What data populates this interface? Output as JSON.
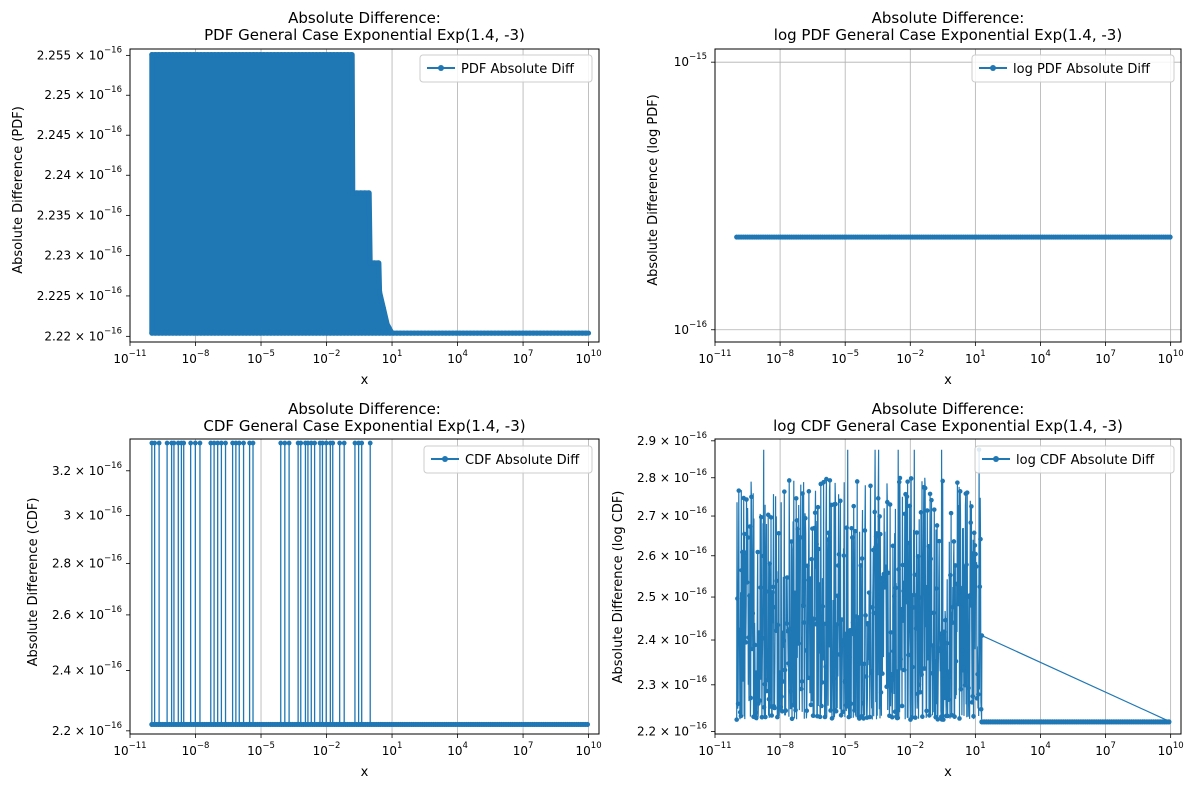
{
  "figure": {
    "series_color": "#1f77b4"
  },
  "charts": [
    {
      "title_line1": "Absolute Difference:",
      "title_line2": "PDF General Case Exponential Exp(1.4, -3)",
      "xlabel": "x",
      "ylabel": "Absolute Difference (PDF)",
      "legend": "PDF Absolute Diff",
      "xticks": [
        "10",
        "10",
        "10",
        "10",
        "10",
        "10",
        "10",
        "10"
      ],
      "xtick_exp": [
        "−11",
        "−8",
        "−5",
        "−2",
        "1",
        "4",
        "7",
        "10"
      ],
      "yticks": [
        "2.22 × 10",
        "2.225 × 10",
        "2.23 × 10",
        "2.235 × 10",
        "2.24 × 10",
        "2.245 × 10",
        "2.25 × 10",
        "2.255 × 10"
      ],
      "ytick_exp": [
        "−16",
        "−16",
        "−16",
        "−16",
        "−16",
        "−16",
        "−16",
        "−16"
      ]
    },
    {
      "title_line1": "Absolute Difference:",
      "title_line2": "log PDF General Case Exponential Exp(1.4, -3)",
      "xlabel": "x",
      "ylabel": "Absolute Difference (log PDF)",
      "legend": "log PDF Absolute Diff",
      "xticks": [
        "10",
        "10",
        "10",
        "10",
        "10",
        "10",
        "10",
        "10"
      ],
      "xtick_exp": [
        "−11",
        "−8",
        "−5",
        "−2",
        "1",
        "4",
        "7",
        "10"
      ],
      "yticks": [
        "10",
        "10"
      ],
      "ytick_exp": [
        "−16",
        "−15"
      ]
    },
    {
      "title_line1": "Absolute Difference:",
      "title_line2": "CDF General Case Exponential Exp(1.4, -3)",
      "xlabel": "x",
      "ylabel": "Absolute Difference (CDF)",
      "legend": "CDF Absolute Diff",
      "xticks": [
        "10",
        "10",
        "10",
        "10",
        "10",
        "10",
        "10",
        "10"
      ],
      "xtick_exp": [
        "−11",
        "−8",
        "−5",
        "−2",
        "1",
        "4",
        "7",
        "10"
      ],
      "yticks": [
        "2.2 × 10",
        "2.4 × 10",
        "2.6 × 10",
        "2.8 × 10",
        "3 × 10",
        "3.2 × 10"
      ],
      "ytick_exp": [
        "−16",
        "−16",
        "−16",
        "−16",
        "−16",
        "−16"
      ]
    },
    {
      "title_line1": "Absolute Difference:",
      "title_line2": "log CDF General Case Exponential Exp(1.4, -3)",
      "xlabel": "x",
      "ylabel": "Absolute Difference (log CDF)",
      "legend": "log CDF Absolute Diff",
      "xticks": [
        "10",
        "10",
        "10",
        "10",
        "10",
        "10",
        "10",
        "10"
      ],
      "xtick_exp": [
        "−11",
        "−8",
        "−5",
        "−2",
        "1",
        "4",
        "7",
        "10"
      ],
      "yticks": [
        "2.2 × 10",
        "2.3 × 10",
        "2.4 × 10",
        "2.5 × 10",
        "2.6 × 10",
        "2.7 × 10",
        "2.8 × 10",
        "2.9 × 10"
      ],
      "ytick_exp": [
        "−16",
        "−16",
        "−16",
        "−16",
        "−16",
        "−16",
        "−16",
        "−16"
      ]
    }
  ],
  "chart_data": [
    {
      "type": "line",
      "title": "Absolute Difference:\nPDF General Case Exponential Exp(1.4, -3)",
      "xlabel": "x",
      "ylabel": "Absolute Difference (PDF)",
      "xscale": "log",
      "yscale": "log",
      "xlim": [
        1e-11,
        30000000000.0
      ],
      "ylim": [
        2.2193e-16,
        2.2558e-16
      ],
      "xticks": [
        1e-11,
        1e-08,
        1e-05,
        0.01,
        10.0,
        10000.0,
        10000000.0,
        10000000000.0
      ],
      "yticks": [
        2.22e-16,
        2.225e-16,
        2.23e-16,
        2.235e-16,
        2.24e-16,
        2.245e-16,
        2.25e-16,
        2.255e-16
      ],
      "grid": true,
      "legend_position": "upper right",
      "series": [
        {
          "name": "PDF Absolute Diff",
          "marker": "o",
          "envelope": [
            {
              "x": 1e-10,
              "ymin": 2.2204e-16,
              "ymax": 2.2551e-16
            },
            {
              "x": 0.15,
              "ymin": 2.2204e-16,
              "ymax": 2.2551e-16
            },
            {
              "x": 0.16,
              "ymin": 2.2204e-16,
              "ymax": 2.2378e-16
            },
            {
              "x": 0.9,
              "ymin": 2.2204e-16,
              "ymax": 2.2378e-16
            },
            {
              "x": 1.0,
              "ymin": 2.2204e-16,
              "ymax": 2.2291e-16
            },
            {
              "x": 2.5,
              "ymin": 2.2204e-16,
              "ymax": 2.2291e-16
            },
            {
              "x": 2.7,
              "ymin": 2.2204e-16,
              "ymax": 2.2255e-16
            },
            {
              "x": 4.0,
              "ymin": 2.2204e-16,
              "ymax": 2.2235e-16
            },
            {
              "x": 6.0,
              "ymin": 2.2204e-16,
              "ymax": 2.2215e-16
            },
            {
              "x": 10,
              "ymin": 2.2204e-16,
              "ymax": 2.2204e-16
            },
            {
              "x": 10000000000.0,
              "ymin": 2.2204e-16,
              "ymax": 2.2204e-16
            }
          ]
        }
      ]
    },
    {
      "type": "line",
      "title": "Absolute Difference:\nlog PDF General Case Exponential Exp(1.4, -3)",
      "xlabel": "x",
      "ylabel": "Absolute Difference (log PDF)",
      "xscale": "log",
      "yscale": "log",
      "xlim": [
        1e-11,
        30000000000.0
      ],
      "ylim": [
        9e-17,
        1.12e-15
      ],
      "xticks": [
        1e-11,
        1e-08,
        1e-05,
        0.01,
        10.0,
        10000.0,
        10000000.0,
        10000000000.0
      ],
      "yticks": [
        1e-16,
        1e-15
      ],
      "grid": true,
      "legend_position": "upper right",
      "series": [
        {
          "name": "log PDF Absolute Diff",
          "marker": "o",
          "x_range": [
            1e-10,
            10000000000.0
          ],
          "constant_y": 2.2204e-16
        }
      ]
    },
    {
      "type": "line",
      "title": "Absolute Difference:\nCDF General Case Exponential Exp(1.4, -3)",
      "xlabel": "x",
      "ylabel": "Absolute Difference (CDF)",
      "xscale": "log",
      "yscale": "log",
      "xlim": [
        1e-11,
        30000000000.0
      ],
      "ylim": [
        2.19e-16,
        3.35e-16
      ],
      "xticks": [
        1e-11,
        1e-08,
        1e-05,
        0.01,
        10.0,
        10000.0,
        10000000.0,
        10000000000.0
      ],
      "yticks": [
        2.2e-16,
        2.4e-16,
        2.6e-16,
        2.8e-16,
        3e-16,
        3.2e-16
      ],
      "grid": true,
      "legend_position": "upper right",
      "series": [
        {
          "name": "CDF Absolute Diff",
          "marker": "o",
          "baseline_y": 2.2204e-16,
          "baseline_x_range": [
            1e-10,
            10000000000.0
          ],
          "spike_y": 3.3307e-16,
          "spikes": [
            {
              "x_from": 1e-10,
              "x_to": 3e-10
            },
            {
              "x_from": 5e-10,
              "x_to": 3e-09
            },
            {
              "x_from": 6e-09,
              "x_to": 2e-08
            },
            {
              "x_from": 5e-08,
              "x_to": 3e-07
            },
            {
              "x_from": 5e-07,
              "x_to": 2e-06
            },
            {
              "x_from": 3e-06,
              "x_to": 5e-06
            },
            {
              "x_from": 8e-05,
              "x_to": 0.0002
            },
            {
              "x_from": 0.0005,
              "x_to": 0.003
            },
            {
              "x_from": 0.005,
              "x_to": 0.02
            },
            {
              "x_from": 0.04,
              "x_to": 0.08
            },
            {
              "x_from": 0.2,
              "x_to": 0.5
            },
            {
              "x_from": 1.0,
              "x_to": 1.2
            }
          ]
        }
      ]
    },
    {
      "type": "line",
      "title": "Absolute Difference:\nlog CDF General Case Exponential Exp(1.4, -3)",
      "xlabel": "x",
      "ylabel": "Absolute Difference (log CDF)",
      "xscale": "log",
      "yscale": "log",
      "xlim": [
        1e-11,
        30000000000.0
      ],
      "ylim": [
        2.195e-16,
        2.905e-16
      ],
      "xticks": [
        1e-11,
        1e-08,
        1e-05,
        0.01,
        10.0,
        10000.0,
        10000000.0,
        10000000000.0
      ],
      "yticks": [
        2.2e-16,
        2.3e-16,
        2.4e-16,
        2.5e-16,
        2.6e-16,
        2.7e-16,
        2.8e-16,
        2.9e-16
      ],
      "grid": true,
      "legend_position": "upper right",
      "series": [
        {
          "name": "log CDF Absolute Diff",
          "marker": "o",
          "noisy_x_range": [
            1e-10,
            20
          ],
          "noisy_y_range": [
            2.2204e-16,
            2.8757e-16
          ],
          "flat_x_range": [
            20,
            10000000000.0
          ],
          "flat_y": 2.2204e-16
        }
      ]
    }
  ]
}
